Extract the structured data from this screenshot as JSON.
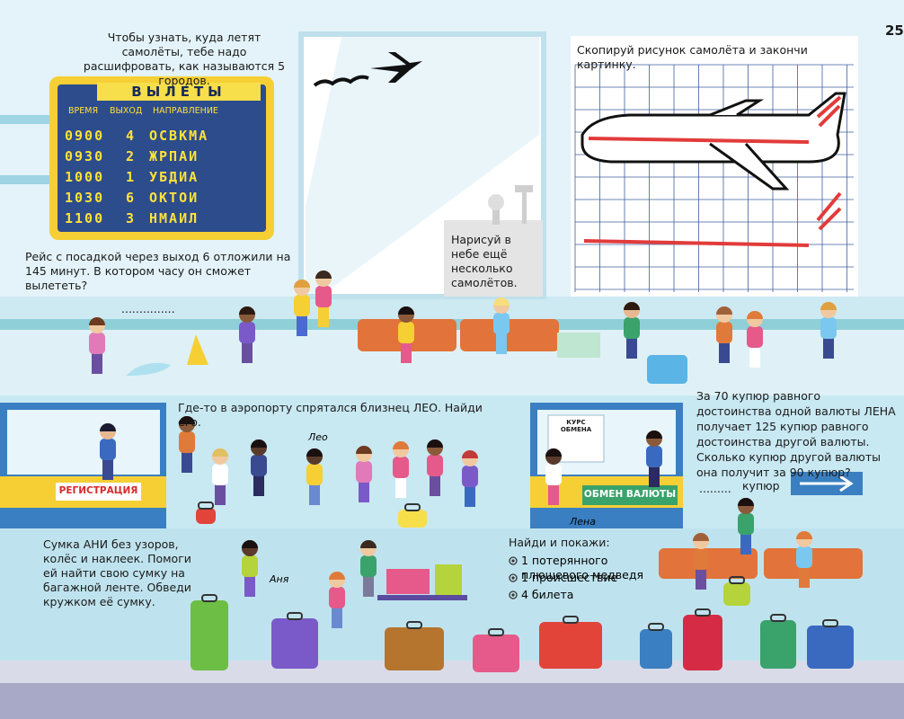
{
  "page_number": "25",
  "intro": "Чтобы узнать, куда летят самолёты, тебе надо расшифровать, как называются 5 городов.",
  "board": {
    "title": "ВЫЛЕТЫ",
    "headers": [
      "ВРЕМЯ",
      "ВЫХОД",
      "НАПРАВЛЕНИЕ"
    ],
    "rows": [
      [
        "0900",
        "4",
        "ОСВКМА"
      ],
      [
        "0930",
        "2",
        "ЖРПАИ"
      ],
      [
        "1000",
        "1",
        "УБДИА"
      ],
      [
        "1030",
        "6",
        "ОКТОИ"
      ],
      [
        "1100",
        "3",
        "НМАИЛ"
      ]
    ]
  },
  "delay_question": "Рейс с посадкой через выход 6 отложили на 145 минут. В котором часу он сможет вылететь?",
  "delay_answer": "...............",
  "window_note": "Нарисуй в небе ещё несколько самолётов.",
  "copy_task": "Скопируй рисунок самолёта и закончи картинку.",
  "twin_task": "Где-то в аэропорту спрятался близнец ЛЕО. Найди его.",
  "names": {
    "leo": "Лео",
    "lena": "Лена",
    "anya": "Аня"
  },
  "signs": {
    "checkin": "РЕГИСТРАЦИЯ",
    "rate": "КУРС ОБМЕНА",
    "exchange": "ОБМЕН ВАЛЮТЫ"
  },
  "currency_question": "За 70 купюр равного достоинства одной валюты ЛЕНА получает 125 купюр равного достоинства другой валюты. Сколько купюр другой валюты она получит за 90 купюр?",
  "currency_answer": {
    "blank": ".........",
    "unit": "купюр"
  },
  "bag_task": "Сумка АНИ без узоров, колёс и наклеек. Помоги ей найти свою сумку на багажной ленте. Обведи кружком её сумку.",
  "find": {
    "title": "Найди и покажи:",
    "items": [
      "1 потерянного плюшевого медведя",
      "1 происшествие",
      "4 билета"
    ]
  }
}
